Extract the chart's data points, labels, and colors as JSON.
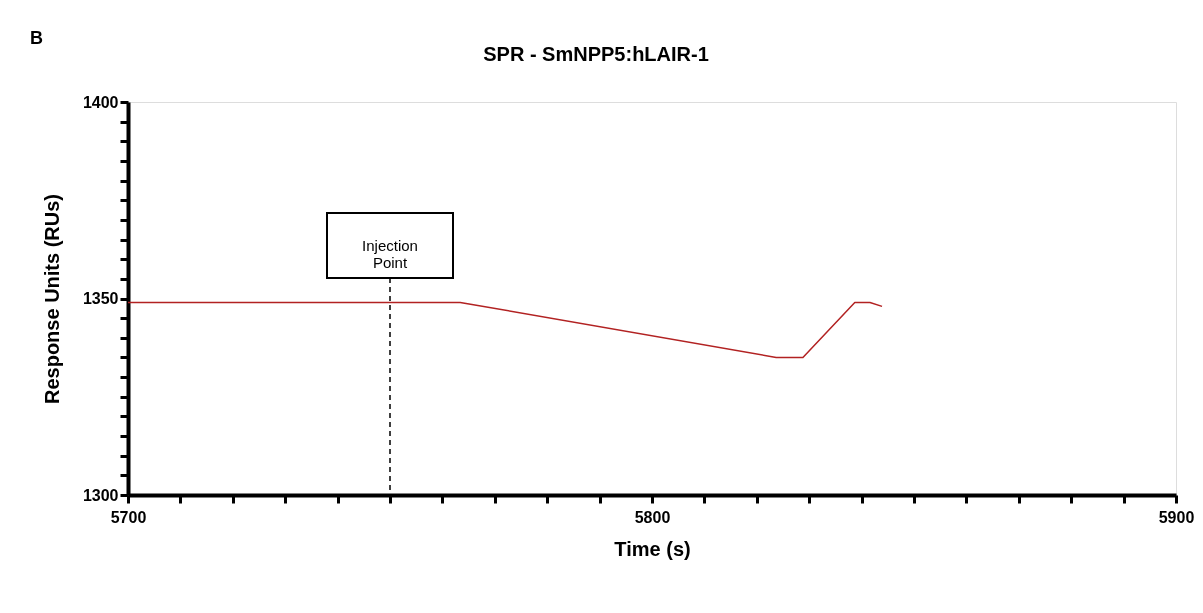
{
  "chart_data": {
    "type": "line",
    "title": "SPR  -  SmNPP5:hLAIR-1",
    "xlabel": "Time (s)",
    "ylabel": "Response Units  (RUs)",
    "annotations": [
      "B"
    ],
    "x": [
      5700,
      5759.5,
      5763.4,
      5823.7,
      5826,
      5828.8,
      5838.7,
      5841.6,
      5843.9
    ],
    "series": [
      {
        "color": "#b22222",
        "values": [
          1349,
          1349,
          1349,
          1335,
          1335,
          1335,
          1349,
          1349,
          1348
        ]
      }
    ],
    "xlim": [
      5700,
      5900
    ],
    "xticks": [
      5700,
      {
        "value": 5710,
        "label": null
      },
      {
        "value": 5720,
        "label": null
      },
      {
        "value": 5730,
        "label": null
      },
      {
        "value": 5740,
        "label": null
      },
      {
        "value": 5750,
        "label": null
      },
      {
        "value": 5760,
        "label": null
      },
      {
        "value": 5770,
        "label": null
      },
      {
        "value": 5780,
        "label": null
      },
      {
        "value": 5790,
        "label": null
      },
      5800,
      {
        "value": 5810,
        "label": null
      },
      {
        "value": 5820,
        "label": null
      },
      {
        "value": 5830,
        "label": null
      },
      {
        "value": 5840,
        "label": null
      },
      {
        "value": 5850,
        "label": null
      },
      {
        "value": 5860,
        "label": null
      },
      {
        "value": 5870,
        "label": null
      },
      {
        "value": 5880,
        "label": null
      },
      {
        "value": 5890,
        "label": null
      },
      5900
    ],
    "ylim": [
      1300,
      1400
    ],
    "yticks": [
      1300,
      {
        "value": 1305,
        "label": null
      },
      {
        "value": 1310,
        "label": null
      },
      {
        "value": 1315,
        "label": null
      },
      {
        "value": 1320,
        "label": null
      },
      {
        "value": 1325,
        "label": null
      },
      {
        "value": 1330,
        "label": null
      },
      {
        "value": 1335,
        "label": null
      },
      {
        "value": 1340,
        "label": null
      },
      {
        "value": 1345,
        "label": null
      },
      1350,
      {
        "value": 1355,
        "label": null
      },
      {
        "value": 1360,
        "label": null
      },
      {
        "value": 1365,
        "label": null
      },
      {
        "value": 1370,
        "label": null
      },
      {
        "value": 1375,
        "label": null
      },
      {
        "value": 1380,
        "label": null
      },
      {
        "value": 1385,
        "label": null
      },
      {
        "value": 1390,
        "label": null
      },
      {
        "value": 1395,
        "label": null
      },
      1400
    ],
    "ref_lines": [
      {
        "axis": "x",
        "value": 5750,
        "label": "Injection\nPoint",
        "color": "#000000",
        "line_style": "dashed"
      }
    ],
    "grid": false,
    "marker": "none",
    "line_style": "solid"
  }
}
